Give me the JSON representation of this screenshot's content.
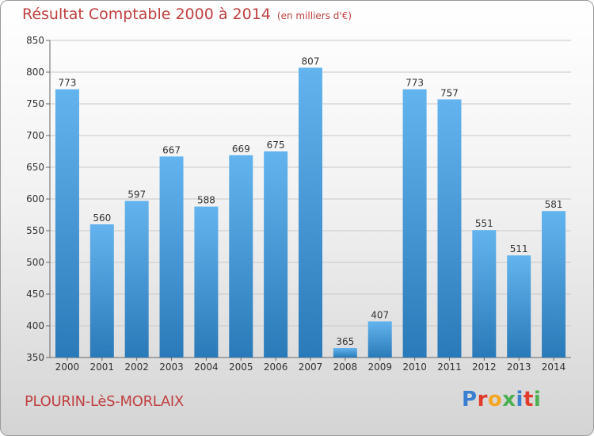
{
  "header": {
    "title": "Résultat Comptable 2000 à 2014",
    "subtitle": "(en milliers d'€)"
  },
  "footer": {
    "city": "PLOURIN-LèS-MORLAIX",
    "logo": "Proxiti",
    "logo_colors": [
      "#3a7fd0",
      "#e23a2a",
      "#f5a623",
      "#4caf50",
      "#3a7fd0",
      "#e23a2a",
      "#4caf50"
    ]
  },
  "chart_data": {
    "type": "bar",
    "title": "Résultat Comptable 2000 à 2014",
    "subtitle": "(en milliers d'€)",
    "categories": [
      "2000",
      "2001",
      "2002",
      "2003",
      "2004",
      "2005",
      "2006",
      "2007",
      "2008",
      "2009",
      "2010",
      "2011",
      "2012",
      "2013",
      "2014"
    ],
    "values": [
      773,
      560,
      597,
      667,
      588,
      669,
      675,
      807,
      365,
      407,
      773,
      757,
      551,
      511,
      581
    ],
    "ylim": [
      350,
      850
    ],
    "yticks": [
      350,
      400,
      450,
      500,
      550,
      600,
      650,
      700,
      750,
      800,
      850
    ],
    "grid": true,
    "bar_color_top": "#63b4ee",
    "bar_color_bottom": "#2a7ab9"
  }
}
